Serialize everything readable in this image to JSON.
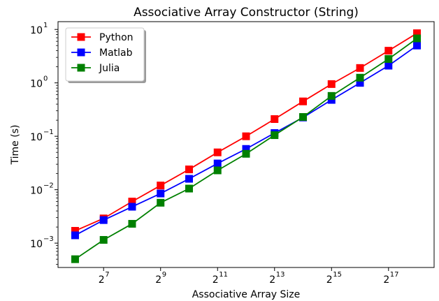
{
  "chart_data": {
    "type": "line",
    "title": "Associative Array Constructor (String)",
    "xlabel": "Associative Array Size",
    "ylabel": "Time (s)",
    "x_scale": "log2",
    "y_scale": "log10",
    "xlim_exponent": [
      5.4,
      18.6
    ],
    "ylim": [
      0.00035,
      14
    ],
    "x_exponents": [
      6,
      7,
      8,
      9,
      10,
      11,
      12,
      13,
      14,
      15,
      16,
      17,
      18
    ],
    "x_ticks": [
      {
        "base": "2",
        "exp": "7",
        "value_exp": 7
      },
      {
        "base": "2",
        "exp": "9",
        "value_exp": 9
      },
      {
        "base": "2",
        "exp": "11",
        "value_exp": 11
      },
      {
        "base": "2",
        "exp": "13",
        "value_exp": 13
      },
      {
        "base": "2",
        "exp": "15",
        "value_exp": 15
      },
      {
        "base": "2",
        "exp": "17",
        "value_exp": 17
      }
    ],
    "y_ticks": [
      {
        "base": "10",
        "exp": "1",
        "value_exp": 1
      },
      {
        "base": "10",
        "exp": "0",
        "value_exp": 0
      },
      {
        "base": "10",
        "exp": "−1",
        "value_exp": -1
      },
      {
        "base": "10",
        "exp": "−2",
        "value_exp": -2
      },
      {
        "base": "10",
        "exp": "−3",
        "value_exp": -3
      }
    ],
    "grid": false,
    "legend_position": "top-left",
    "series": [
      {
        "name": "Python",
        "color": "#ff0000",
        "values": [
          0.0017,
          0.0029,
          0.006,
          0.012,
          0.024,
          0.05,
          0.1,
          0.21,
          0.45,
          0.95,
          1.9,
          4.0,
          8.5
        ]
      },
      {
        "name": "Matlab",
        "color": "#0000ff",
        "values": [
          0.0014,
          0.0027,
          0.0048,
          0.0085,
          0.016,
          0.031,
          0.058,
          0.115,
          0.225,
          0.48,
          1.0,
          2.1,
          5.0
        ]
      },
      {
        "name": "Julia",
        "color": "#008000",
        "values": [
          0.0005,
          0.00115,
          0.0023,
          0.0057,
          0.0105,
          0.023,
          0.047,
          0.105,
          0.23,
          0.57,
          1.25,
          2.8,
          6.8
        ]
      }
    ]
  }
}
